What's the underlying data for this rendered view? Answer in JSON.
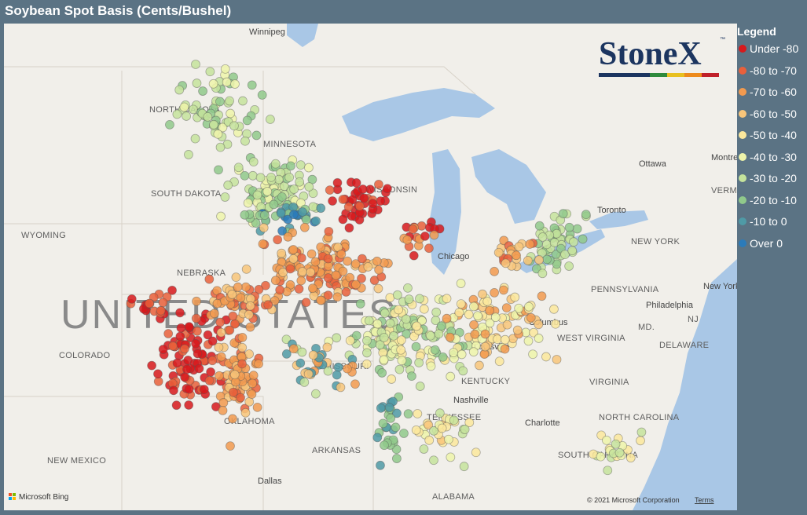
{
  "header": {
    "title": "Soybean Spot Basis (Cents/Bushel)"
  },
  "legend": {
    "title": "Legend",
    "items": [
      {
        "label": "Under -80",
        "color": "#d7191c"
      },
      {
        "label": "-80 to -70",
        "color": "#e9603b"
      },
      {
        "label": "-70 to -60",
        "color": "#f29a4f"
      },
      {
        "label": "-60 to -50",
        "color": "#f8c57a"
      },
      {
        "label": "-50 to -40",
        "color": "#fbe79c"
      },
      {
        "label": "-40 to -30",
        "color": "#eef4aa"
      },
      {
        "label": "-30 to -20",
        "color": "#c5e39c"
      },
      {
        "label": "-20 to -10",
        "color": "#90c98b"
      },
      {
        "label": "-10 to 0",
        "color": "#4f9aa6"
      },
      {
        "label": "Over 0",
        "color": "#2b7bba"
      }
    ]
  },
  "logo": {
    "name": "StoneX",
    "mark": "™"
  },
  "map": {
    "labels": [
      "UNITED STATES",
      "Winnipeg",
      "NORTH DAKOTA",
      "MINNESOTA",
      "SOUTH DAKOTA",
      "WISCONSIN",
      "WYOMING",
      "NEBRASKA",
      "COLORADO",
      "MISSOURI",
      "KENTUCKY",
      "TENNESSEE",
      "OKLAHOMA",
      "ARKANSAS",
      "NEW MEXICO",
      "Dallas",
      "ALABAMA",
      "Chicago",
      "Toronto",
      "Ottawa",
      "NEW YORK",
      "PENNSYLVANIA",
      "Philadelphia",
      "Columbus",
      "WEST VIRGINIA",
      "VIRGINIA",
      "NORTH CAROLINA",
      "SOUTH CAROLINA",
      "Charlotte",
      "Nashville",
      "Louisville",
      "New York",
      "NJ",
      "MD.",
      "DELAWARE",
      "Montre",
      "VERMO"
    ]
  },
  "footer": {
    "provider": "Microsoft Bing",
    "copyright": "© 2021 Microsoft Corporation",
    "terms": "Terms"
  }
}
